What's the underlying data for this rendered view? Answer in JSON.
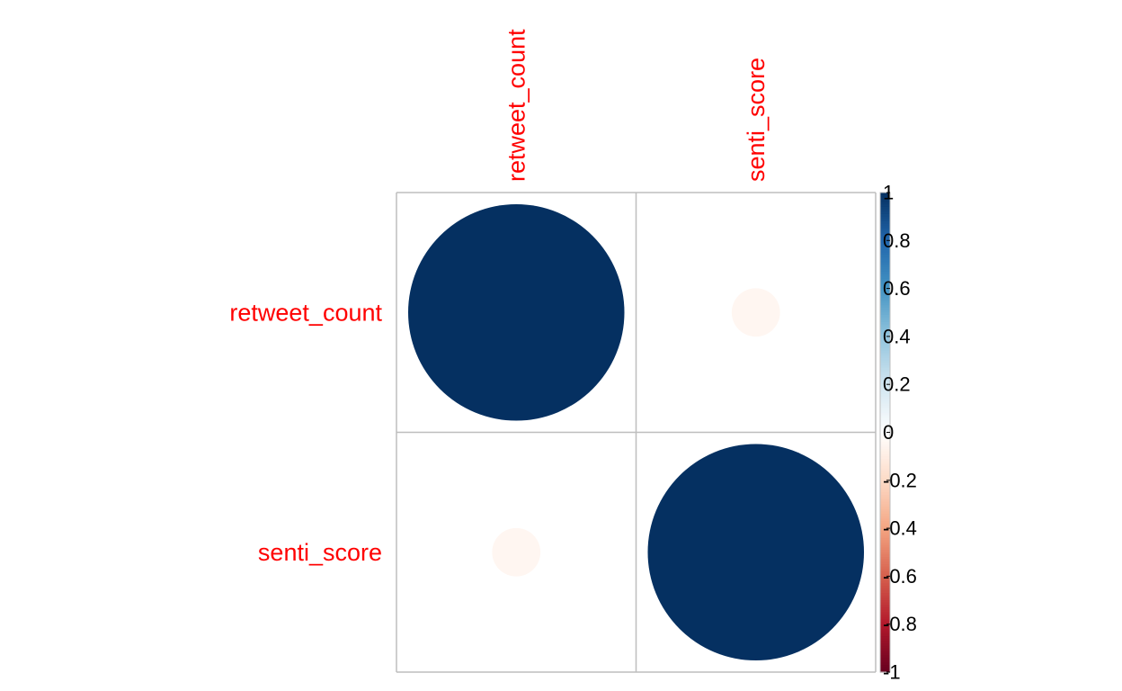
{
  "chart_data": {
    "type": "heatmap",
    "variables": [
      "retweet_count",
      "senti_score"
    ],
    "matrix": [
      [
        1,
        -0.05
      ],
      [
        -0.05,
        1
      ]
    ],
    "colorbar": {
      "ticks": [
        "1",
        "0.8",
        "0.6",
        "0.4",
        "0.2",
        "0",
        "-0.2",
        "-0.4",
        "-0.6",
        "-0.8",
        "-1"
      ],
      "range": [
        -1,
        1
      ],
      "colors": [
        "#67001F",
        "#B2182B",
        "#D6604D",
        "#F4A582",
        "#FDDBC7",
        "#FFFFFF",
        "#D1E5F0",
        "#92C5DE",
        "#4393C3",
        "#2166AC",
        "#053061"
      ]
    },
    "label_color": "#ff0000",
    "grid_color": "#bebebe"
  }
}
